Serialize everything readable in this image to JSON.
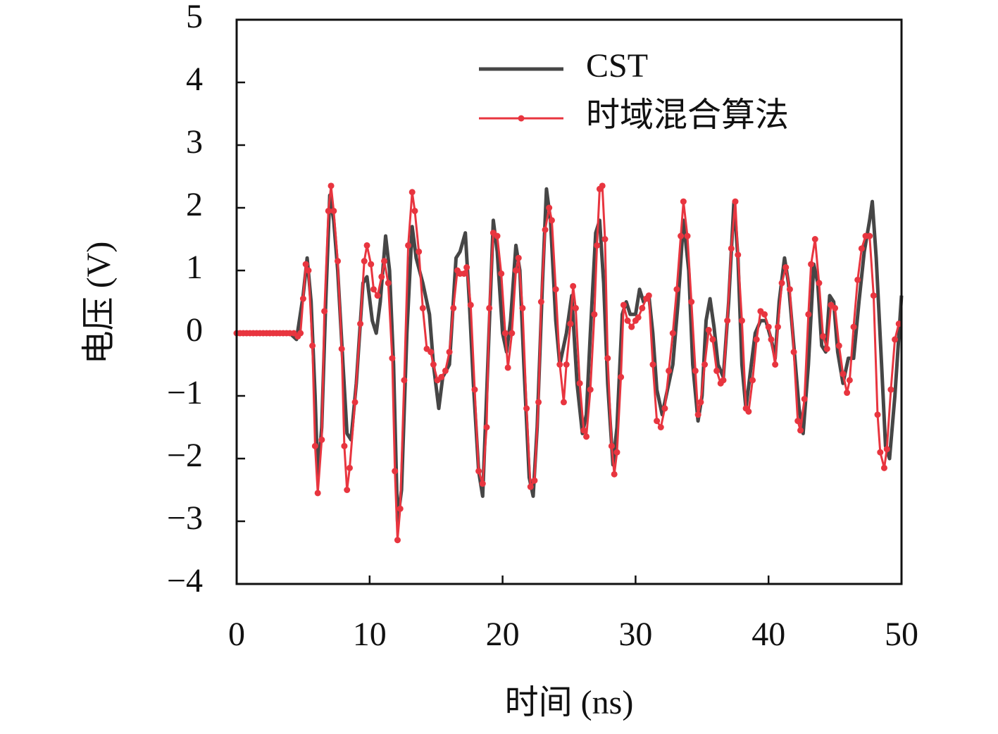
{
  "chart_data": {
    "type": "line",
    "xlabel": "时间 (ns)",
    "ylabel": "电压 (V)",
    "xlim": [
      0,
      50
    ],
    "ylim": [
      -4,
      5
    ],
    "xticks": [
      0,
      10,
      20,
      30,
      40,
      50
    ],
    "yticks": [
      {
        "value": -4,
        "label": "−4"
      },
      {
        "value": -3,
        "label": "−3"
      },
      {
        "value": -2,
        "label": "−2"
      },
      {
        "value": -1,
        "label": "−1"
      },
      0,
      1,
      2,
      3,
      4,
      5
    ],
    "legend": "upper right",
    "series": [
      {
        "name": "CST",
        "color": "#464646",
        "markers": false,
        "x": [
          0,
          1,
          2,
          3,
          4,
          4.5,
          5.0,
          5.3,
          5.6,
          5.9,
          6.1,
          6.4,
          6.7,
          7.0,
          7.3,
          7.6,
          8.0,
          8.3,
          8.6,
          9.0,
          9.5,
          9.8,
          10.2,
          10.5,
          10.8,
          11.2,
          11.5,
          11.8,
          12.1,
          12.4,
          12.8,
          13.2,
          13.5,
          14.0,
          14.5,
          14.8,
          15.2,
          15.5,
          16.0,
          16.5,
          16.8,
          17.2,
          17.5,
          17.8,
          18.2,
          18.5,
          18.8,
          19.3,
          19.6,
          20.0,
          20.3,
          20.6,
          21.0,
          21.3,
          21.6,
          22.0,
          22.3,
          22.6,
          23.0,
          23.3,
          23.6,
          24.0,
          24.3,
          24.8,
          25.2,
          25.6,
          26.0,
          26.3,
          26.6,
          27.0,
          27.3,
          27.6,
          27.9,
          28.3,
          28.6,
          29.0,
          29.3,
          29.6,
          30.0,
          30.3,
          30.6,
          31.0,
          31.3,
          31.6,
          32.0,
          32.4,
          32.8,
          33.2,
          33.6,
          34.0,
          34.3,
          34.7,
          35.0,
          35.3,
          35.6,
          35.9,
          36.2,
          36.6,
          37.0,
          37.4,
          37.7,
          38.0,
          38.3,
          38.7,
          39.0,
          39.4,
          39.8,
          40.2,
          40.5,
          40.8,
          41.2,
          41.5,
          41.9,
          42.3,
          42.6,
          43.0,
          43.4,
          43.7,
          44.0,
          44.3,
          44.6,
          44.9,
          45.2,
          45.6,
          46.0,
          46.4,
          46.8,
          47.2,
          47.6,
          47.8,
          48.1,
          48.5,
          48.8,
          49.1,
          49.5,
          50.0
        ],
        "values": [
          0,
          0,
          0,
          0,
          0,
          -0.1,
          0.6,
          1.2,
          0.5,
          -1.0,
          -2.3,
          -1.5,
          0.5,
          2.2,
          1.8,
          1.0,
          -0.5,
          -1.6,
          -1.7,
          -0.8,
          0.8,
          0.9,
          0.2,
          0.0,
          0.5,
          1.55,
          1.0,
          -0.5,
          -3.0,
          -2.5,
          0.0,
          1.7,
          1.2,
          0.8,
          0.3,
          -0.5,
          -1.2,
          -0.7,
          -0.5,
          1.2,
          1.3,
          1.6,
          0.5,
          -0.8,
          -2.2,
          -2.6,
          -1.0,
          1.8,
          1.3,
          0.0,
          -0.3,
          0.2,
          1.4,
          1.0,
          -0.5,
          -2.3,
          -2.6,
          -1.5,
          0.8,
          2.3,
          1.8,
          0.2,
          -0.5,
          0.0,
          0.6,
          -0.8,
          -1.6,
          -1.3,
          0.0,
          1.6,
          1.8,
          0.8,
          -0.8,
          -2.1,
          -1.5,
          0.3,
          0.5,
          0.3,
          0.3,
          0.7,
          0.5,
          0.6,
          0.0,
          -0.9,
          -1.3,
          -0.9,
          -0.5,
          0.5,
          1.8,
          1.0,
          -0.5,
          -1.4,
          -1.0,
          0.2,
          0.55,
          0.1,
          -0.5,
          -0.7,
          0.5,
          2.1,
          1.2,
          -0.5,
          -1.2,
          -0.5,
          0.0,
          0.2,
          0.2,
          -0.1,
          -0.4,
          0.5,
          1.2,
          0.8,
          -0.2,
          -1.2,
          -1.6,
          -0.5,
          1.1,
          0.8,
          -0.2,
          -0.3,
          0.6,
          0.5,
          -0.3,
          -0.8,
          -0.4,
          -0.4,
          0.5,
          1.3,
          1.8,
          2.1,
          1.2,
          -0.5,
          -1.8,
          -2.0,
          -1.0,
          0.6
        ]
      },
      {
        "name": "时域混合算法",
        "color": "#e8353f",
        "markers": true,
        "x": [
          0,
          0.25,
          0.5,
          0.75,
          1.0,
          1.25,
          1.5,
          1.75,
          2.0,
          2.25,
          2.5,
          2.75,
          3.0,
          3.25,
          3.5,
          3.75,
          4.0,
          4.3,
          4.6,
          4.8,
          5.0,
          5.2,
          5.4,
          5.7,
          5.9,
          6.1,
          6.4,
          6.6,
          6.9,
          7.1,
          7.3,
          7.6,
          7.9,
          8.1,
          8.3,
          8.5,
          8.9,
          9.3,
          9.6,
          9.8,
          10.1,
          10.3,
          10.6,
          10.9,
          11.1,
          11.4,
          11.7,
          11.9,
          12.1,
          12.3,
          12.6,
          12.9,
          13.2,
          13.4,
          13.7,
          14.0,
          14.3,
          14.6,
          14.8,
          15.1,
          15.4,
          15.7,
          16.0,
          16.3,
          16.6,
          16.8,
          17.1,
          17.3,
          17.6,
          17.9,
          18.2,
          18.5,
          18.8,
          19.0,
          19.3,
          19.6,
          19.9,
          20.2,
          20.4,
          20.7,
          21.0,
          21.2,
          21.5,
          21.8,
          22.1,
          22.4,
          22.7,
          22.9,
          23.2,
          23.5,
          23.7,
          24.0,
          24.3,
          24.6,
          24.8,
          25.1,
          25.3,
          25.5,
          25.8,
          26.1,
          26.3,
          26.6,
          26.9,
          27.1,
          27.3,
          27.5,
          27.7,
          27.9,
          28.2,
          28.4,
          28.6,
          28.9,
          29.1,
          29.4,
          29.7,
          30.0,
          30.2,
          30.5,
          30.8,
          31.0,
          31.3,
          31.6,
          31.9,
          32.2,
          32.5,
          32.8,
          33.1,
          33.4,
          33.6,
          33.9,
          34.2,
          34.5,
          34.7,
          34.9,
          35.2,
          35.5,
          35.8,
          36.1,
          36.4,
          36.6,
          36.9,
          37.2,
          37.5,
          37.7,
          38.0,
          38.3,
          38.5,
          38.8,
          39.1,
          39.4,
          39.7,
          40.0,
          40.2,
          40.5,
          40.7,
          41.0,
          41.3,
          41.6,
          41.9,
          42.2,
          42.4,
          42.7,
          43.0,
          43.2,
          43.5,
          43.8,
          44.1,
          44.4,
          44.7,
          45.0,
          45.3,
          45.6,
          45.9,
          46.1,
          46.4,
          46.7,
          47.0,
          47.3,
          47.6,
          47.9,
          48.2,
          48.4,
          48.7,
          48.9,
          49.2,
          49.5,
          49.8
        ],
        "values": [
          0,
          0,
          0,
          0,
          0,
          0,
          0,
          0,
          0,
          0,
          0,
          0,
          0,
          0,
          0,
          0,
          0,
          0,
          -0.05,
          0.0,
          0.55,
          1.1,
          1.0,
          -0.2,
          -1.8,
          -2.55,
          -1.7,
          0.35,
          1.95,
          2.35,
          1.95,
          1.15,
          -0.25,
          -1.8,
          -2.5,
          -2.15,
          -1.1,
          0.15,
          1.15,
          1.4,
          1.1,
          0.7,
          0.6,
          0.9,
          1.15,
          0.8,
          -0.4,
          -2.2,
          -3.3,
          -2.8,
          -0.75,
          1.4,
          2.25,
          1.95,
          1.3,
          0.4,
          -0.25,
          -0.3,
          -0.5,
          -0.75,
          -0.7,
          -0.6,
          -0.3,
          0.4,
          1.0,
          0.95,
          0.95,
          1.05,
          0.45,
          -0.9,
          -2.2,
          -2.4,
          -1.5,
          0.4,
          1.6,
          1.55,
          0.95,
          0.0,
          -0.55,
          0.0,
          1.0,
          1.2,
          0.4,
          -1.2,
          -2.45,
          -2.35,
          -1.1,
          0.5,
          1.65,
          2.0,
          1.8,
          0.7,
          -0.5,
          -1.1,
          -0.5,
          0.15,
          0.75,
          0.4,
          -0.8,
          -1.55,
          -1.65,
          -0.9,
          0.3,
          1.4,
          2.3,
          2.35,
          1.5,
          -0.4,
          -1.8,
          -2.25,
          -1.9,
          -0.7,
          0.45,
          0.2,
          0.1,
          0.2,
          0.25,
          0.4,
          0.55,
          0.6,
          -0.5,
          -1.4,
          -1.5,
          -1.2,
          -0.6,
          0.0,
          0.7,
          1.55,
          2.1,
          1.55,
          0.5,
          -0.6,
          -1.3,
          -1.1,
          -0.5,
          0.05,
          -0.1,
          -0.6,
          -0.8,
          -0.75,
          0.2,
          1.35,
          2.1,
          1.25,
          0.2,
          -1.2,
          -1.25,
          -0.75,
          -0.1,
          0.35,
          0.3,
          0.1,
          -0.1,
          -0.5,
          0.1,
          0.8,
          1.05,
          0.7,
          -0.3,
          -1.4,
          -1.55,
          -1.05,
          0.3,
          1.1,
          1.5,
          0.8,
          -0.05,
          -0.25,
          0.45,
          0.4,
          -0.2,
          -0.65,
          -0.95,
          -0.75,
          0.1,
          0.85,
          1.35,
          1.55,
          1.55,
          0.6,
          -1.3,
          -1.9,
          -2.15,
          -1.85,
          -0.9,
          -0.1,
          0.15
        ]
      }
    ]
  }
}
